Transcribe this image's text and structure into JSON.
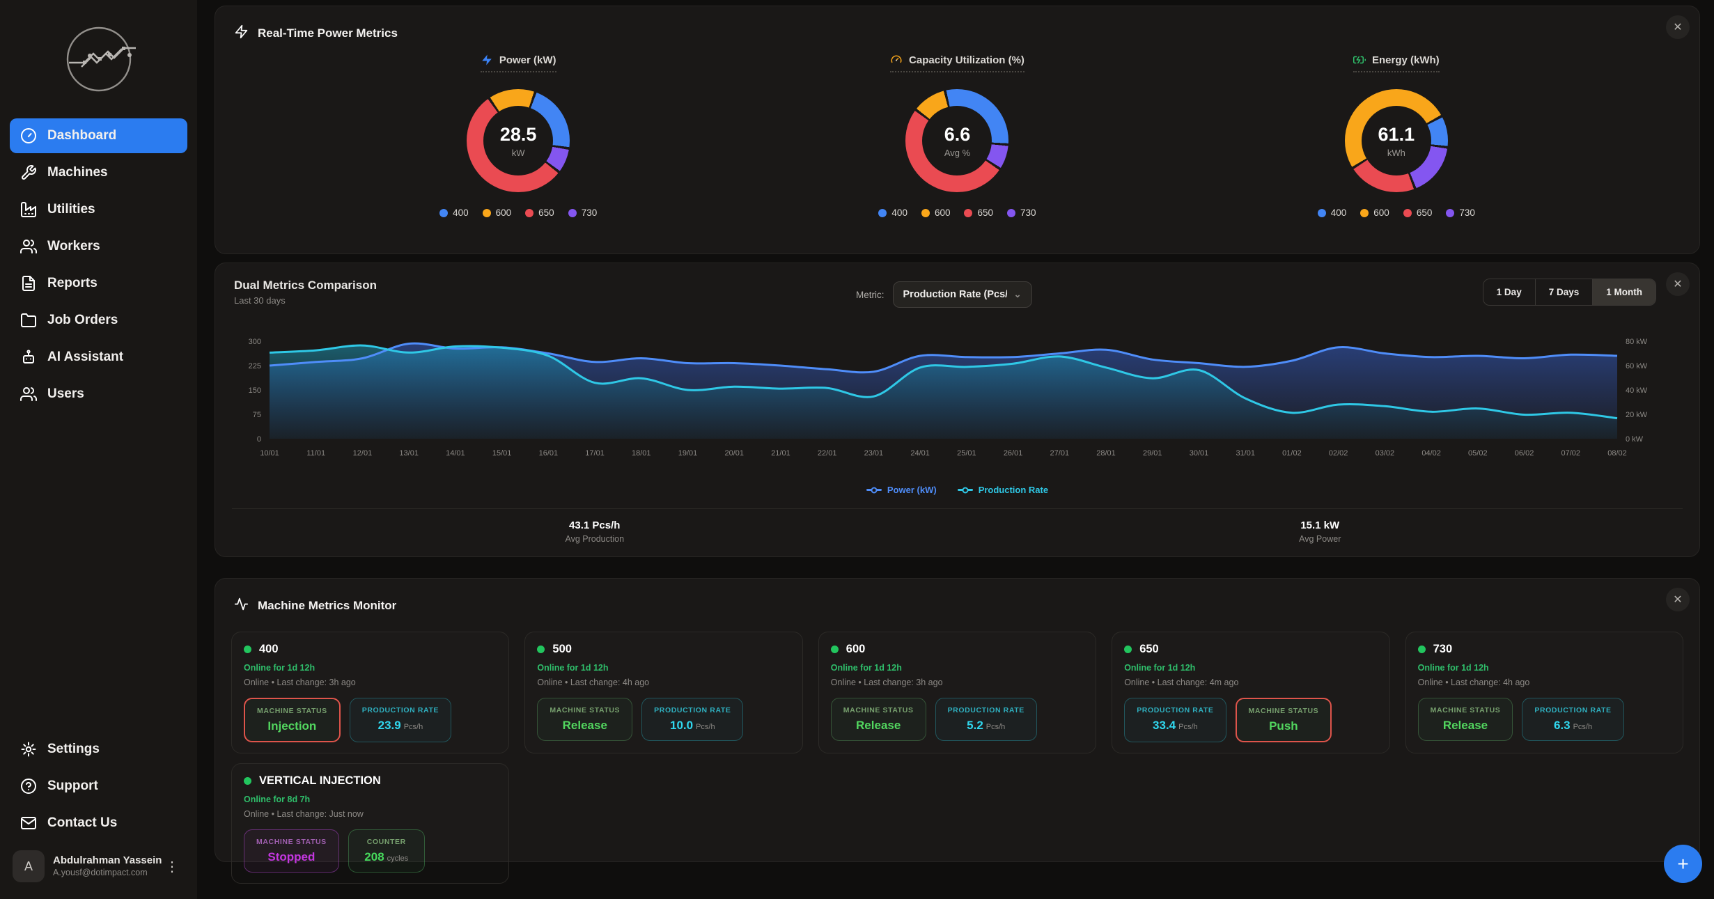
{
  "icons": {
    "close": "✕",
    "chevron_down": "⌄",
    "kebab": "⋮",
    "plus": "+"
  },
  "sidebar": {
    "nav": [
      {
        "label": "Dashboard",
        "icon": "gauge-circle",
        "active": true
      },
      {
        "label": "Machines",
        "icon": "wrench",
        "active": false
      },
      {
        "label": "Utilities",
        "icon": "factory",
        "active": false
      },
      {
        "label": "Workers",
        "icon": "users",
        "active": false
      },
      {
        "label": "Reports",
        "icon": "file-text",
        "active": false
      },
      {
        "label": "Job Orders",
        "icon": "folder",
        "active": false
      },
      {
        "label": "AI Assistant",
        "icon": "bot",
        "active": false
      },
      {
        "label": "Users",
        "icon": "users",
        "active": false
      }
    ],
    "footer_nav": [
      {
        "label": "Settings",
        "icon": "gear"
      },
      {
        "label": "Support",
        "icon": "help-circle"
      },
      {
        "label": "Contact Us",
        "icon": "mail"
      }
    ],
    "user": {
      "initial": "A",
      "name": "Abdulrahman Yassein",
      "email": "A.yousf@dotimpact.com"
    }
  },
  "machine_colors": {
    "400": "#4285f4",
    "600": "#f9a61a",
    "650": "#ea4b52",
    "730": "#8456f0"
  },
  "power_metrics_card": {
    "title": "Real-Time Power Metrics",
    "header_icon": "zap",
    "gauges": [
      {
        "title": "Power (kW)",
        "icon": "zap",
        "icon_color": "#3b82f6",
        "icon_filled": true,
        "value": "28.5",
        "unit": "kW",
        "start_deg": 18,
        "chart_data": {
          "type": "pie",
          "labels": [
            "400",
            "600",
            "650",
            "730"
          ],
          "values": [
            22,
            15,
            55,
            8
          ],
          "colors": [
            "#4285f4",
            "#f9a61a",
            "#ea4b52",
            "#8456f0"
          ],
          "center_value": 28.5,
          "center_unit": "kW"
        }
      },
      {
        "title": "Capacity Utilization (%)",
        "icon": "gauge",
        "icon_color": "#f9a61a",
        "icon_filled": false,
        "value": "6.6",
        "unit": "Avg %",
        "start_deg": -15,
        "chart_data": {
          "type": "pie",
          "labels": [
            "400",
            "600",
            "650",
            "730"
          ],
          "values": [
            30,
            11,
            51,
            8
          ],
          "colors": [
            "#4285f4",
            "#f9a61a",
            "#ea4b52",
            "#8456f0"
          ],
          "center_value": 6.6,
          "center_unit": "Avg %"
        }
      },
      {
        "title": "Energy (kWh)",
        "icon": "battery-charging",
        "icon_color": "#2fbf6b",
        "icon_filled": false,
        "value": "61.1",
        "unit": "kWh",
        "start_deg": 60,
        "chart_data": {
          "type": "pie",
          "labels": [
            "400",
            "600",
            "650",
            "730"
          ],
          "values": [
            10,
            51,
            22,
            17
          ],
          "colors": [
            "#4285f4",
            "#f9a61a",
            "#ea4b52",
            "#8456f0"
          ],
          "center_value": 61.1,
          "center_unit": "kWh"
        }
      }
    ]
  },
  "dual_metrics_card": {
    "title": "Dual Metrics Comparison",
    "subtitle": "Last 30 days",
    "metric_label": "Metric:",
    "metric_value": "Production Rate (Pcs/h",
    "ranges": [
      "1 Day",
      "7 Days",
      "1 Month"
    ],
    "selected_range": "1 Month",
    "chart_data": {
      "type": "area",
      "x": [
        "10/01",
        "11/01",
        "12/01",
        "13/01",
        "14/01",
        "15/01",
        "16/01",
        "17/01",
        "18/01",
        "19/01",
        "20/01",
        "21/01",
        "22/01",
        "23/01",
        "24/01",
        "25/01",
        "26/01",
        "27/01",
        "28/01",
        "29/01",
        "30/01",
        "31/01",
        "01/02",
        "02/02",
        "03/02",
        "04/02",
        "05/02",
        "06/02",
        "07/02",
        "08/02"
      ],
      "series": [
        {
          "name": "Power (kW)",
          "axis": "right",
          "color": "#4f8df9",
          "values": [
            60,
            63,
            66,
            78,
            74,
            75,
            70,
            63,
            66,
            62,
            62,
            60,
            57,
            55,
            68,
            67,
            67,
            70,
            73,
            65,
            62,
            59,
            64,
            75,
            70,
            67,
            68,
            66,
            69,
            68
          ]
        },
        {
          "name": "Production Rate",
          "axis": "left",
          "color": "#2fc8e6",
          "values": [
            265,
            272,
            287,
            265,
            284,
            280,
            255,
            172,
            186,
            150,
            160,
            154,
            156,
            130,
            219,
            221,
            231,
            253,
            219,
            186,
            211,
            124,
            80,
            105,
            100,
            83,
            93,
            74,
            80,
            63
          ]
        }
      ],
      "left_axis": {
        "range": [
          0,
          300
        ],
        "ticks": [
          0,
          75,
          150,
          225,
          300
        ]
      },
      "right_axis": {
        "range": [
          0,
          80
        ],
        "ticks": [
          "0 kW",
          "20 kW",
          "40 kW",
          "60 kW",
          "80 kW"
        ]
      },
      "grid": false,
      "legend_position": "bottom"
    },
    "stats": [
      {
        "value": "43.1 Pcs/h",
        "label": "Avg Production"
      },
      {
        "value": "15.1 kW",
        "label": "Avg Power"
      }
    ]
  },
  "machine_monitor_card": {
    "title": "Machine Metrics Monitor",
    "header_icon": "activity",
    "machines": [
      {
        "id": "400",
        "uptime": "Online for 1d 12h",
        "status_line": "Online • Last change: 3h ago",
        "badges": [
          {
            "label": "MACHINE STATUS",
            "value": "Injection",
            "theme": "status",
            "alert": true
          },
          {
            "label": "PRODUCTION RATE",
            "value": "23.9",
            "unit": "Pcs/h",
            "theme": "rate"
          }
        ]
      },
      {
        "id": "500",
        "uptime": "Online for 1d 12h",
        "status_line": "Online • Last change: 4h ago",
        "badges": [
          {
            "label": "MACHINE STATUS",
            "value": "Release",
            "theme": "status"
          },
          {
            "label": "PRODUCTION RATE",
            "value": "10.0",
            "unit": "Pcs/h",
            "theme": "rate"
          }
        ]
      },
      {
        "id": "600",
        "uptime": "Online for 1d 12h",
        "status_line": "Online • Last change: 3h ago",
        "badges": [
          {
            "label": "MACHINE STATUS",
            "value": "Release",
            "theme": "status"
          },
          {
            "label": "PRODUCTION RATE",
            "value": "5.2",
            "unit": "Pcs/h",
            "theme": "rate"
          }
        ]
      },
      {
        "id": "650",
        "uptime": "Online for 1d 12h",
        "status_line": "Online • Last change: 4m ago",
        "badges": [
          {
            "label": "PRODUCTION RATE",
            "value": "33.4",
            "unit": "Pcs/h",
            "theme": "rate"
          },
          {
            "label": "MACHINE STATUS",
            "value": "Push",
            "theme": "status",
            "alert": true
          }
        ]
      },
      {
        "id": "730",
        "uptime": "Online for 1d 12h",
        "status_line": "Online • Last change: 4h ago",
        "badges": [
          {
            "label": "MACHINE STATUS",
            "value": "Release",
            "theme": "status"
          },
          {
            "label": "PRODUCTION RATE",
            "value": "6.3",
            "unit": "Pcs/h",
            "theme": "rate"
          }
        ]
      },
      {
        "id": "VERTICAL INJECTION",
        "uptime": "Online for 8d 7h",
        "status_line": "Online • Last change: Just now",
        "badges": [
          {
            "label": "MACHINE STATUS",
            "value": "Stopped",
            "theme": "purple"
          },
          {
            "label": "COUNTER",
            "value": "208",
            "unit": "cycles",
            "theme": "counter"
          }
        ]
      }
    ]
  },
  "fab_label": "+"
}
